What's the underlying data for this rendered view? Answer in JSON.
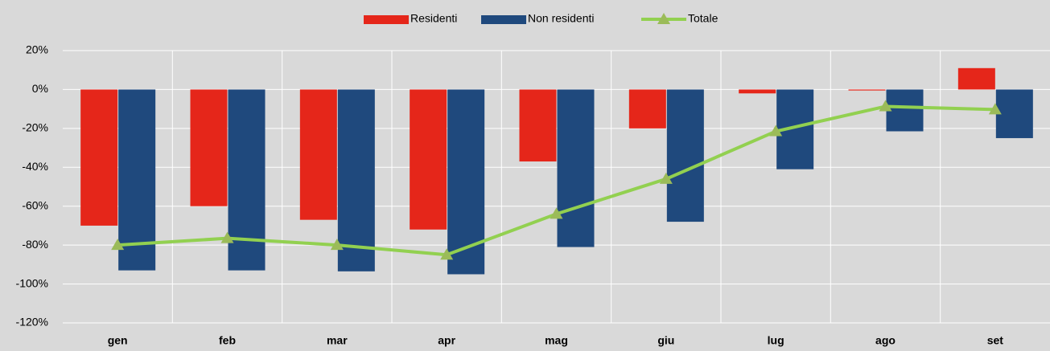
{
  "chart_data": {
    "type": "bar_line",
    "categories": [
      "gen",
      "feb",
      "mar",
      "apr",
      "mag",
      "giu",
      "lug",
      "ago",
      "set"
    ],
    "series": [
      {
        "name": "Residenti",
        "type": "bar",
        "color": "#e5261a",
        "values": [
          -70,
          -60,
          -67,
          -72,
          -37,
          -20,
          -2,
          -0.5,
          11
        ]
      },
      {
        "name": "Non residenti",
        "type": "bar",
        "color": "#1f497d",
        "values": [
          -93,
          -93,
          -93.5,
          -95,
          -81,
          -68,
          -41,
          -21.5,
          -25
        ]
      },
      {
        "name": "Totale",
        "type": "line",
        "color": "#92d050",
        "marker_color": "#9bbb59",
        "values": [
          -80,
          -76.5,
          -80,
          -85,
          -64,
          -46,
          -21.5,
          -8.7,
          -10.3
        ]
      }
    ],
    "ylim": [
      -120,
      20
    ],
    "yticks": [
      {
        "value": -120,
        "label": "-120%"
      },
      {
        "value": -100,
        "label": "-100%"
      },
      {
        "value": -80,
        "label": "-80%"
      },
      {
        "value": -60,
        "label": "-60%"
      },
      {
        "value": -40,
        "label": "-40%"
      },
      {
        "value": -20,
        "label": "-20%"
      },
      {
        "value": 0,
        "label": "0%"
      },
      {
        "value": 20,
        "label": "20%"
      }
    ],
    "grid": true,
    "legend": "top"
  }
}
